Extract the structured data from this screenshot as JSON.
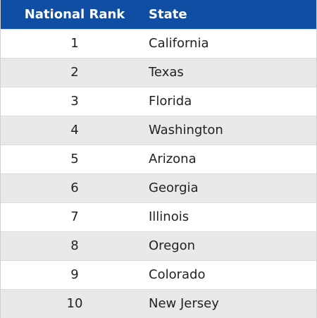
{
  "table": {
    "headers": {
      "rank": "National Rank",
      "state": "State"
    },
    "rows": [
      {
        "rank": "1",
        "state": "California"
      },
      {
        "rank": "2",
        "state": "Texas"
      },
      {
        "rank": "3",
        "state": "Florida"
      },
      {
        "rank": "4",
        "state": "Washington"
      },
      {
        "rank": "5",
        "state": "Arizona"
      },
      {
        "rank": "6",
        "state": "Georgia"
      },
      {
        "rank": "7",
        "state": "Illinois"
      },
      {
        "rank": "8",
        "state": "Oregon"
      },
      {
        "rank": "9",
        "state": "Colorado"
      },
      {
        "rank": "10",
        "state": "New Jersey"
      }
    ]
  },
  "colors": {
    "header_bg": "#0f4ea2",
    "header_text": "#ffffff",
    "row_alt_bg": "#e9e9e9",
    "row_bg": "#ffffff"
  }
}
